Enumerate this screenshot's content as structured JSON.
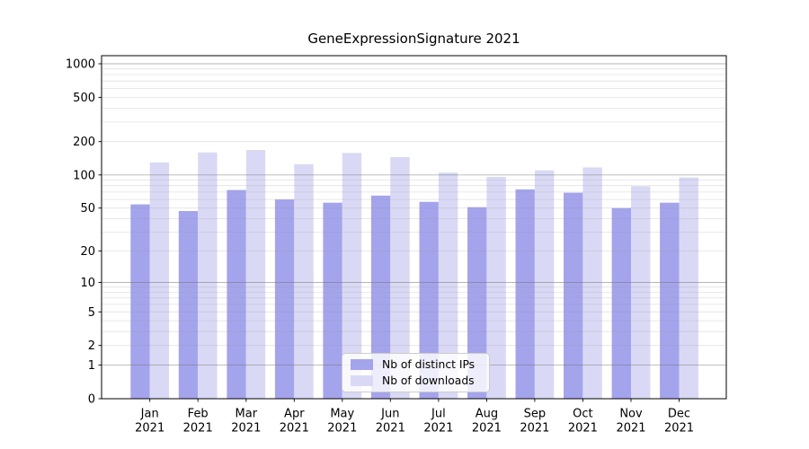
{
  "chart_data": {
    "type": "bar",
    "title": "GeneExpressionSignature 2021",
    "categories": [
      "Jan 2021",
      "Feb 2021",
      "Mar 2021",
      "Apr 2021",
      "May 2021",
      "Jun 2021",
      "Jul 2021",
      "Aug 2021",
      "Sep 2021",
      "Oct 2021",
      "Nov 2021",
      "Dec 2021"
    ],
    "series": [
      {
        "name": "Nb of distinct IPs",
        "color": "#a4a4ec",
        "values": [
          54,
          47,
          73,
          60,
          56,
          65,
          57,
          51,
          74,
          69,
          50,
          56
        ]
      },
      {
        "name": "Nb of downloads",
        "color": "#d9d9f6",
        "values": [
          130,
          160,
          168,
          125,
          158,
          145,
          105,
          96,
          110,
          117,
          79,
          95
        ]
      }
    ],
    "xlabel": "",
    "ylabel": "",
    "yscale": "log1p",
    "ylim": [
      0,
      1180
    ],
    "ytick_values": [
      0,
      1,
      2,
      5,
      10,
      20,
      50,
      100,
      200,
      500,
      1000
    ],
    "ytick_labels": [
      "0",
      "1",
      "2",
      "5",
      "10",
      "20",
      "50",
      "100",
      "200",
      "500",
      "1000"
    ],
    "grid": "horizontal major+minor",
    "legend": {
      "position": "lower-center-inside",
      "items": [
        "Nb of distinct IPs",
        "Nb of downloads"
      ]
    }
  },
  "colors": {
    "background": "#ffffff",
    "spine": "#000000",
    "text": "#000000",
    "grid_major": "rgba(110,110,110,0.50)",
    "grid_minor": "rgba(150,150,150,0.28)",
    "legend_border": "#cccccc",
    "legend_background": "rgba(255,255,255,0.8)"
  }
}
